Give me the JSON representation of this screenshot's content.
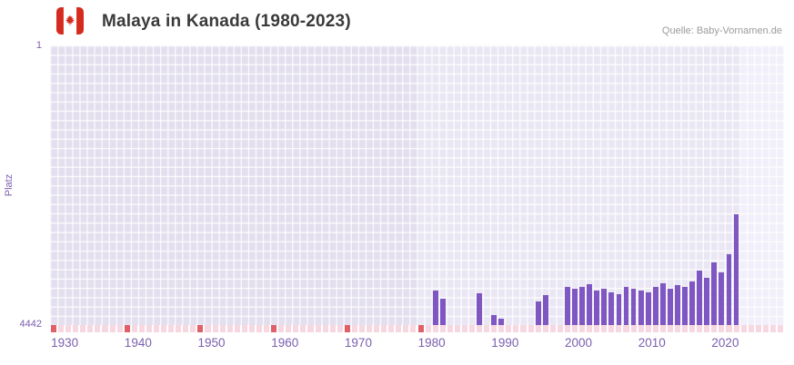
{
  "header": {
    "title": "Malaya in Kanada (1980-2023)",
    "source": "Quelle: Baby-Vornamen.de",
    "flag_icon": "canada-flag"
  },
  "chart_data": {
    "type": "bar",
    "title": "Malaya in Kanada (1980-2023)",
    "xlabel": "",
    "ylabel": "Platz",
    "y_axis": {
      "min": 1,
      "max": 4442,
      "inverted": true,
      "top_label": "1",
      "bottom_label": "4442"
    },
    "x_axis": {
      "start_year": 1928,
      "end_year": 2028,
      "tick_years": [
        1930,
        1940,
        1950,
        1960,
        1970,
        1980,
        1990,
        2000,
        2010,
        2020
      ]
    },
    "highlight_band": {
      "pre_end": 1978,
      "post_start": 2022
    },
    "grid": true,
    "grid_rows": 30,
    "legend": "none",
    "series": [
      {
        "name": "Platz",
        "points": [
          {
            "year": 1980,
            "rank": 3890
          },
          {
            "year": 1981,
            "rank": 4020
          },
          {
            "year": 1986,
            "rank": 3940
          },
          {
            "year": 1988,
            "rank": 4280
          },
          {
            "year": 1989,
            "rank": 4340
          },
          {
            "year": 1994,
            "rank": 4060
          },
          {
            "year": 1995,
            "rank": 3960
          },
          {
            "year": 1998,
            "rank": 3830
          },
          {
            "year": 1999,
            "rank": 3860
          },
          {
            "year": 2000,
            "rank": 3830
          },
          {
            "year": 2001,
            "rank": 3800
          },
          {
            "year": 2002,
            "rank": 3890
          },
          {
            "year": 2003,
            "rank": 3860
          },
          {
            "year": 2004,
            "rank": 3920
          },
          {
            "year": 2005,
            "rank": 3950
          },
          {
            "year": 2006,
            "rank": 3840
          },
          {
            "year": 2007,
            "rank": 3870
          },
          {
            "year": 2008,
            "rank": 3900
          },
          {
            "year": 2009,
            "rank": 3920
          },
          {
            "year": 2010,
            "rank": 3840
          },
          {
            "year": 2011,
            "rank": 3780
          },
          {
            "year": 2012,
            "rank": 3870
          },
          {
            "year": 2013,
            "rank": 3810
          },
          {
            "year": 2014,
            "rank": 3840
          },
          {
            "year": 2015,
            "rank": 3750
          },
          {
            "year": 2016,
            "rank": 3580
          },
          {
            "year": 2017,
            "rank": 3690
          },
          {
            "year": 2018,
            "rank": 3440
          },
          {
            "year": 2019,
            "rank": 3610
          },
          {
            "year": 2020,
            "rank": 3320
          },
          {
            "year": 2021,
            "rank": 2690
          }
        ]
      }
    ],
    "baseline_markers": {
      "red_years": [
        1928,
        1938,
        1948,
        1958,
        1968,
        1978
      ]
    }
  },
  "colors": {
    "bar": "#7e57c2",
    "axis_text": "#7a5fae",
    "plot_bg": "#eae7f4",
    "plot_bg_pre": "#e3dfee",
    "plot_bg_post": "#f1effa",
    "grid_line": "rgba(255,255,255,0.75)",
    "marker_pink": "#f7d7e0",
    "marker_red": "#e0606a",
    "title_text": "#3a3a3a",
    "source_text": "#9b9b9b",
    "flag_red": "#d52b1e"
  }
}
